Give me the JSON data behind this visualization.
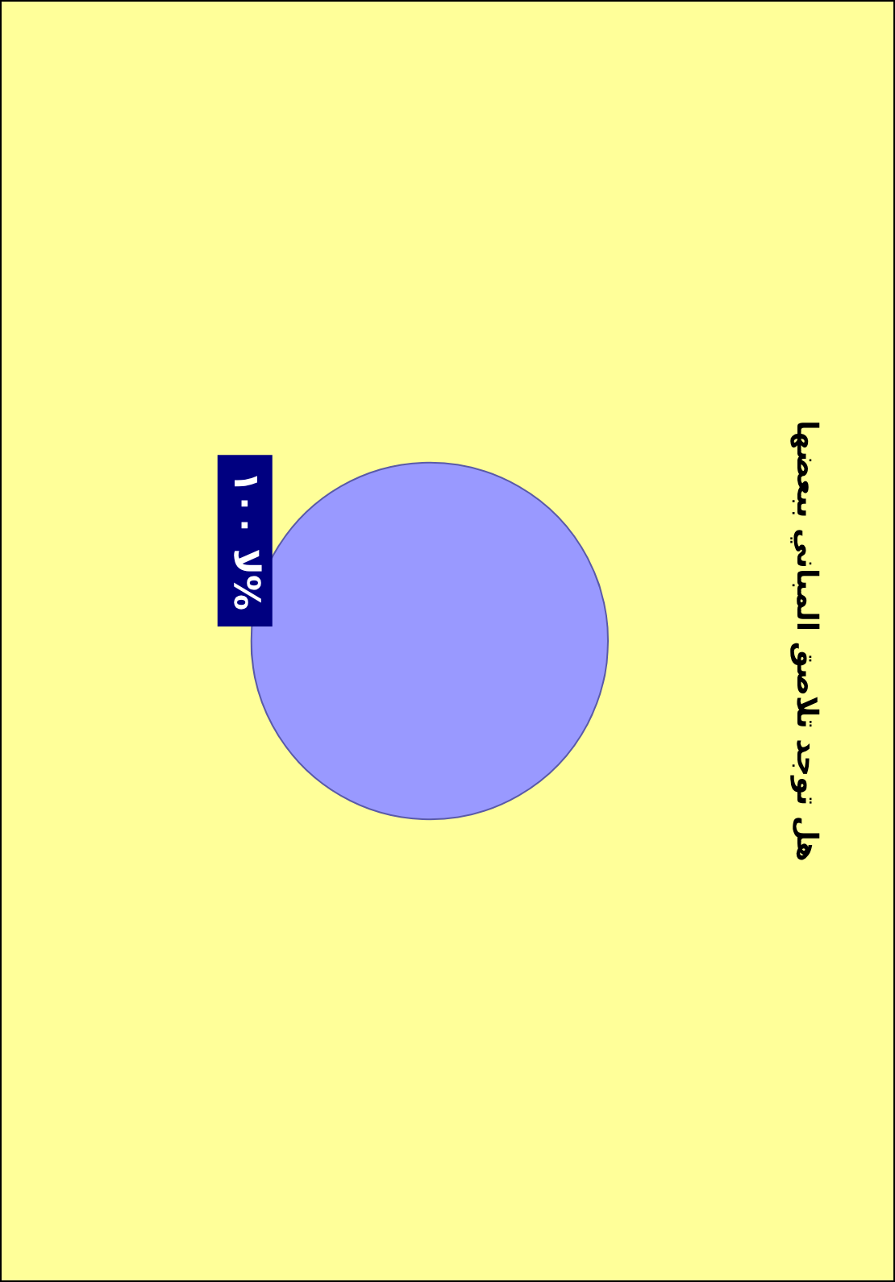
{
  "chart_data": {
    "type": "pie",
    "title": "هل توجد تلاصق المباني ببعضها",
    "categories": [
      "لا"
    ],
    "values": [
      100
    ],
    "colors": [
      "#9999ff"
    ],
    "value_labels": [
      "١٠٠%"
    ],
    "legend": false
  }
}
